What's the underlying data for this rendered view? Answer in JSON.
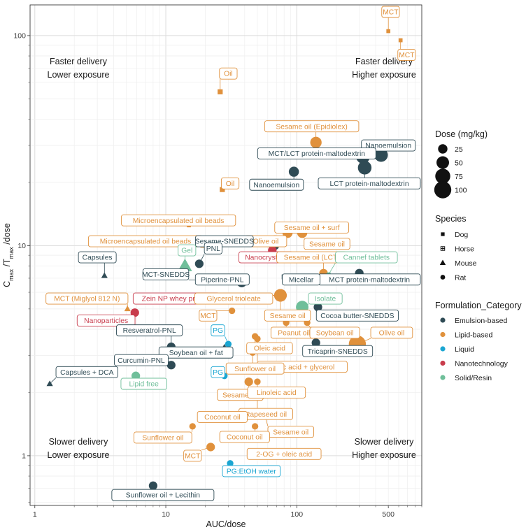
{
  "chart_data": {
    "type": "scatter",
    "xlabel": "AUC/dose",
    "ylabel_main": "C",
    "ylabel_sub1": "max",
    "ylabel_mid": " /T",
    "ylabel_sub2": "max",
    "ylabel_end": " /dose",
    "x_scale": "log10",
    "y_scale": "log10",
    "xlim": [
      0.92,
      900
    ],
    "ylim": [
      0.58,
      140
    ],
    "x_ticks": [
      1,
      10,
      100,
      500
    ],
    "x_tick_labels": [
      "1",
      "10",
      "100",
      "500"
    ],
    "y_ticks": [
      1,
      10,
      100
    ],
    "y_tick_labels": [
      "1",
      "10",
      "100"
    ],
    "quadrants": [
      {
        "line1": "Faster delivery",
        "line2": "Lower exposure",
        "pos": "top-left"
      },
      {
        "line1": "Faster delivery",
        "line2": "Higher exposure",
        "pos": "top-right"
      },
      {
        "line1": "Slower delivery",
        "line2": "Lower exposure",
        "pos": "bottom-left"
      },
      {
        "line1": "Slower delivery",
        "line2": "Higher exposure",
        "pos": "bottom-right"
      }
    ],
    "colors": {
      "Emulsion-based": "#2f4b55",
      "Lipid-based": "#e0913c",
      "Liquid": "#1ba6d2",
      "Nanotechnology": "#c83c4c",
      "Solid/Resin": "#6fbf9a"
    },
    "legend_size": {
      "title": "Dose (mg/kg)",
      "values": [
        25,
        50,
        75,
        100
      ]
    },
    "legend_species": {
      "title": "Species",
      "items": [
        "Dog",
        "Horse",
        "Mouse",
        "Rat"
      ]
    },
    "legend_category": {
      "title": "Formulation_Category",
      "items": [
        "Emulsion-based",
        "Lipid-based",
        "Liquid",
        "Nanotechnology",
        "Solid/Resin"
      ]
    },
    "points": [
      {
        "label": "MCT",
        "x": 500,
        "y": 105,
        "cat": "Lipid-based",
        "species": "Dog",
        "dose": 5,
        "lx": 520,
        "ly": 130
      },
      {
        "label": "MCT",
        "x": 620,
        "y": 95,
        "cat": "Lipid-based",
        "species": "Dog",
        "dose": 5,
        "lx": 690,
        "ly": 81
      },
      {
        "label": "Oil",
        "x": 26,
        "y": 54,
        "cat": "Lipid-based",
        "species": "Dog",
        "dose": 10,
        "lx": 30,
        "ly": 66
      },
      {
        "label": "Sesame oil (Epidiolex)",
        "x": 140,
        "y": 31,
        "cat": "Lipid-based",
        "species": "Rat",
        "dose": 40,
        "lx": 130,
        "ly": 37
      },
      {
        "label": "Nanoemulsion",
        "x": 440,
        "y": 27,
        "cat": "Emulsion-based",
        "species": "Rat",
        "dose": 60,
        "lx": 500,
        "ly": 30
      },
      {
        "label": "MCT/LCT protein-maltodextrin",
        "x": 320,
        "y": 26.5,
        "cat": "Emulsion-based",
        "species": "Rat",
        "dose": 60,
        "lx": 142,
        "ly": 27.5
      },
      {
        "label": "LCT protein-maltodextrin",
        "x": 330,
        "y": 23.5,
        "cat": "Emulsion-based",
        "species": "Rat",
        "dose": 60,
        "lx": 420,
        "ly": 19.8
      },
      {
        "label": "Nanoemulsion",
        "x": 95,
        "y": 22.5,
        "cat": "Emulsion-based",
        "species": "Rat",
        "dose": 30,
        "lx": 70,
        "ly": 19.5
      },
      {
        "label": "Oil",
        "x": 27,
        "y": 18.5,
        "cat": "Lipid-based",
        "species": "Dog",
        "dose": 10,
        "lx": 31,
        "ly": 19.8
      },
      {
        "label": "Microencapsulated oil beads",
        "x": 15,
        "y": 12.5,
        "cat": "Lipid-based",
        "species": "Dog",
        "dose": 5,
        "lx": 12.5,
        "ly": 13.2
      },
      {
        "label": "Microencapsulated oil beads",
        "x": 19,
        "y": 10,
        "cat": "Lipid-based",
        "species": "Dog",
        "dose": 5,
        "lx": 7,
        "ly": 10.5
      },
      {
        "label": "Sesame oil + surf",
        "x": 85,
        "y": 11.5,
        "cat": "Lipid-based",
        "species": "Rat",
        "dose": 30,
        "lx": 130,
        "ly": 12.2
      },
      {
        "label": "Sesame oil",
        "x": 110,
        "y": 11.5,
        "cat": "Lipid-based",
        "species": "Rat",
        "dose": 30,
        "lx": 170,
        "ly": 10.2
      },
      {
        "label": "Olive oil",
        "x": 68,
        "y": 10.7,
        "cat": "Lipid-based",
        "species": "Rat",
        "dose": 20,
        "lx": 58,
        "ly": 10.5
      },
      {
        "label": "Sesame-SNEDDS",
        "x": 68,
        "y": 10,
        "cat": "Emulsion-based",
        "species": "Rat",
        "dose": 20,
        "lx": 28,
        "ly": 10.5
      },
      {
        "label": "Nanocrystals",
        "x": 65,
        "y": 9.5,
        "cat": "Nanotechnology",
        "species": "Rat",
        "dose": 20,
        "lx": 58,
        "ly": 8.8
      },
      {
        "label": "Sesame oil (LCT)",
        "x": 160,
        "y": 7.4,
        "cat": "Lipid-based",
        "species": "Rat",
        "dose": 20,
        "lx": 130,
        "ly": 8.8
      },
      {
        "label": "Cannef tablets",
        "x": 175,
        "y": 7.3,
        "cat": "Solid/Resin",
        "species": "Dog",
        "dose": 5,
        "lx": 340,
        "ly": 8.8
      },
      {
        "label": "MCT protein-maltodextrin",
        "x": 300,
        "y": 7.4,
        "cat": "Emulsion-based",
        "species": "Rat",
        "dose": 20,
        "lx": 420,
        "ly": 6.9
      },
      {
        "label": "Micellar",
        "x": 80,
        "y": 7.1,
        "cat": "Emulsion-based",
        "species": "Horse",
        "dose": 5,
        "lx": 108,
        "ly": 6.9
      },
      {
        "label": "Capsules",
        "x": 3.4,
        "y": 7.2,
        "cat": "Emulsion-based",
        "species": "Mouse",
        "dose": 5,
        "lx": 3,
        "ly": 8.8
      },
      {
        "label": "Gel",
        "x": 14,
        "y": 8,
        "cat": "Solid/Resin",
        "species": "Mouse",
        "dose": 40,
        "lx": 14.5,
        "ly": 9.5
      },
      {
        "label": "PNL",
        "x": 18,
        "y": 8.2,
        "cat": "Emulsion-based",
        "species": "Rat",
        "dose": 20,
        "lx": 23,
        "ly": 9.7
      },
      {
        "label": "MCT-SNEDDS",
        "x": 38,
        "y": 6.8,
        "cat": "Emulsion-based",
        "species": "Rat",
        "dose": 30,
        "lx": 10,
        "ly": 7.3
      },
      {
        "label": "Piperine-PNL",
        "x": 38,
        "y": 6.7,
        "cat": "Emulsion-based",
        "species": "Rat",
        "dose": 30,
        "lx": 27,
        "ly": 6.9
      },
      {
        "label": "MCT (Miglyol 812 N)",
        "x": 5.1,
        "y": 5,
        "cat": "Lipid-based",
        "species": "Mouse",
        "dose": 5,
        "lx": 2.5,
        "ly": 5.6
      },
      {
        "label": "Zein NP whey protein",
        "x": 75,
        "y": 5.8,
        "cat": "Nanotechnology",
        "species": "Rat",
        "dose": 50,
        "lx": 12,
        "ly": 5.6
      },
      {
        "label": "Glycerol trioleate",
        "x": 75,
        "y": 5.8,
        "cat": "Lipid-based",
        "species": "Rat",
        "dose": 50,
        "lx": 33,
        "ly": 5.6
      },
      {
        "label": "Isolate",
        "x": 110,
        "y": 5.1,
        "cat": "Solid/Resin",
        "species": "Rat",
        "dose": 50,
        "lx": 165,
        "ly": 5.6
      },
      {
        "label": "Sesame oil",
        "x": 75,
        "y": 5.8,
        "cat": "Lipid-based",
        "species": "Rat",
        "dose": 50,
        "lx": 85,
        "ly": 4.65
      },
      {
        "label": "Cocoa butter-SNEDDS",
        "x": 145,
        "y": 5.1,
        "cat": "Emulsion-based",
        "species": "Rat",
        "dose": 20,
        "lx": 290,
        "ly": 4.65
      },
      {
        "label": "Nanoparticles",
        "x": 5.8,
        "y": 4.8,
        "cat": "Nanotechnology",
        "species": "Rat",
        "dose": 20,
        "lx": 3.5,
        "ly": 4.4
      },
      {
        "label": "MCT",
        "x": 32,
        "y": 4.9,
        "cat": "Lipid-based",
        "species": "Rat",
        "dose": 10,
        "lx": 21,
        "ly": 4.65
      },
      {
        "label": "Peanut oil",
        "x": 83,
        "y": 4.3,
        "cat": "Lipid-based",
        "species": "Rat",
        "dose": 10,
        "lx": 95,
        "ly": 3.85
      },
      {
        "label": "Soybean oil",
        "x": 120,
        "y": 4.3,
        "cat": "Lipid-based",
        "species": "Rat",
        "dose": 10,
        "lx": 195,
        "ly": 3.85
      },
      {
        "label": "Olive oil",
        "x": 290,
        "y": 3.4,
        "cat": "Lipid-based",
        "species": "Rat",
        "dose": 100,
        "lx": 530,
        "ly": 3.85
      },
      {
        "label": "Resveratrol-PNL",
        "x": 11,
        "y": 3.3,
        "cat": "Emulsion-based",
        "species": "Rat",
        "dose": 20,
        "lx": 7.5,
        "ly": 3.95
      },
      {
        "label": "PG",
        "x": 30,
        "y": 3.4,
        "cat": "Liquid",
        "species": "Rat",
        "dose": 10,
        "lx": 25,
        "ly": 3.95
      },
      {
        "label": "Tricaprin-SNEDDS",
        "x": 140,
        "y": 3.45,
        "cat": "Emulsion-based",
        "species": "Rat",
        "dose": 20,
        "lx": 205,
        "ly": 3.15
      },
      {
        "label": "Soybean oil + fat",
        "x": 28,
        "y": 3.25,
        "cat": "Emulsion-based",
        "species": "Mouse",
        "dose": 10,
        "lx": 17,
        "ly": 3.1
      },
      {
        "label": "Oleic acid",
        "x": 48,
        "y": 3.7,
        "cat": "Lipid-based",
        "species": "Rat",
        "dose": 10,
        "lx": 62,
        "ly": 3.25
      },
      {
        "label": "Curcumin-PNL",
        "x": 11,
        "y": 2.7,
        "cat": "Emulsion-based",
        "species": "Rat",
        "dose": 20,
        "lx": 6.5,
        "ly": 2.85
      },
      {
        "label": "Oleic acid + glycerol",
        "x": 50,
        "y": 3.6,
        "cat": "Lipid-based",
        "species": "Rat",
        "dose": 10,
        "lx": 110,
        "ly": 2.65
      },
      {
        "label": "Sunflower oil",
        "x": 46,
        "y": 3.1,
        "cat": "Lipid-based",
        "species": "Rat",
        "dose": 10,
        "lx": 48,
        "ly": 2.6
      },
      {
        "label": "Capsules + DCA",
        "x": 1.3,
        "y": 2.2,
        "cat": "Emulsion-based",
        "species": "Mouse",
        "dose": 5,
        "lx": 2.5,
        "ly": 2.5
      },
      {
        "label": "PG",
        "x": 28,
        "y": 2.4,
        "cat": "Liquid",
        "species": "Rat",
        "dose": 10,
        "lx": 25,
        "ly": 2.5
      },
      {
        "label": "Lipid free",
        "x": 5.9,
        "y": 2.4,
        "cat": "Solid/Resin",
        "species": "Rat",
        "dose": 20,
        "lx": 6.8,
        "ly": 2.2
      },
      {
        "label": "Sesame oil",
        "x": 43,
        "y": 2.25,
        "cat": "Lipid-based",
        "species": "Rat",
        "dose": 20,
        "lx": 37,
        "ly": 1.95
      },
      {
        "label": "Linoleic acid",
        "x": 50,
        "y": 2.25,
        "cat": "Lipid-based",
        "species": "Rat",
        "dose": 10,
        "lx": 70,
        "ly": 2.0
      },
      {
        "label": "Rapeseed oil",
        "x": 50,
        "y": 1.95,
        "cat": "Lipid-based",
        "species": "Rat",
        "dose": 10,
        "lx": 58,
        "ly": 1.58
      },
      {
        "label": "Coconut oil",
        "x": 47,
        "y": 1.55,
        "cat": "Lipid-based",
        "species": "Rat",
        "dose": 10,
        "lx": 27,
        "ly": 1.53
      },
      {
        "label": "Sesame oil",
        "x": 57,
        "y": 1.55,
        "cat": "Lipid-based",
        "species": "Rat",
        "dose": 10,
        "lx": 90,
        "ly": 1.3
      },
      {
        "label": "Sunflower oil",
        "x": 16,
        "y": 1.38,
        "cat": "Lipid-based",
        "species": "Rat",
        "dose": 10,
        "lx": 9.5,
        "ly": 1.22
      },
      {
        "label": "Coconut oil",
        "x": 48,
        "y": 1.38,
        "cat": "Lipid-based",
        "species": "Rat",
        "dose": 10,
        "lx": 40,
        "ly": 1.23
      },
      {
        "label": "MCT",
        "x": 22,
        "y": 1.1,
        "cat": "Lipid-based",
        "species": "Rat",
        "dose": 20,
        "lx": 16,
        "ly": 1.0
      },
      {
        "label": "2-OG + oleic acid",
        "x": 56,
        "y": 1.0,
        "cat": "Lipid-based",
        "species": "Rat",
        "dose": 10,
        "lx": 80,
        "ly": 1.02
      },
      {
        "label": "PG:EtOH water",
        "x": 31,
        "y": 0.92,
        "cat": "Liquid",
        "species": "Rat",
        "dose": 10,
        "lx": 45,
        "ly": 0.845
      },
      {
        "label": "Sunflower oil + Lecithin",
        "x": 8,
        "y": 0.72,
        "cat": "Emulsion-based",
        "species": "Rat",
        "dose": 20,
        "lx": 9.5,
        "ly": 0.65
      }
    ]
  }
}
